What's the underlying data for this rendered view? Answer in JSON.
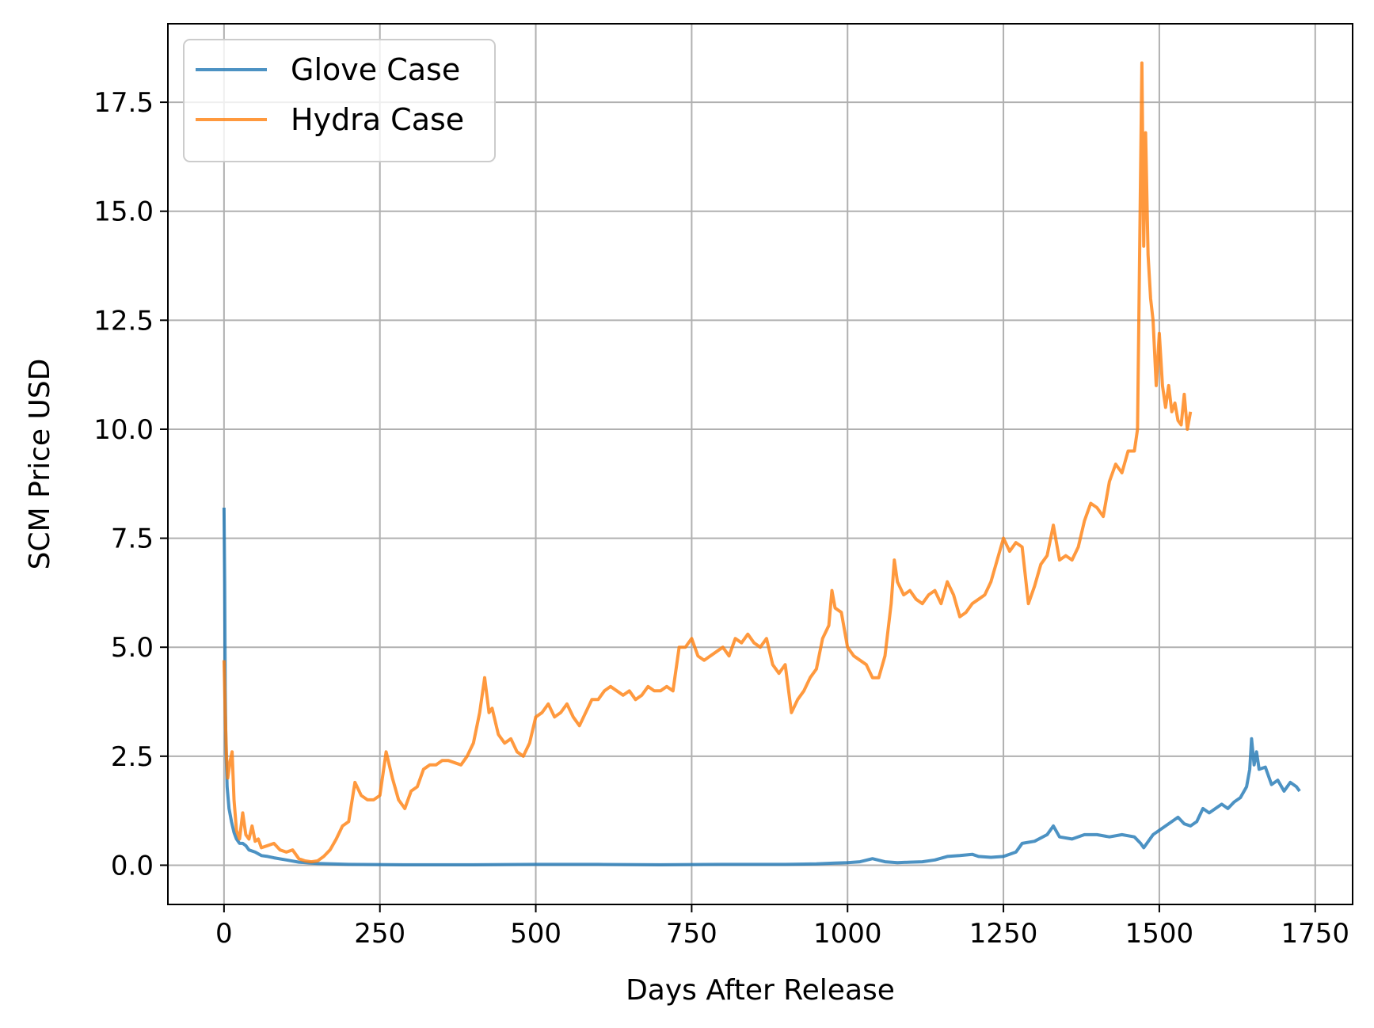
{
  "chart_data": {
    "type": "line",
    "xlabel": "Days After Release",
    "ylabel": "SCM Price USD",
    "xlim": [
      -90,
      1810
    ],
    "ylim": [
      -0.9,
      19.3
    ],
    "xticks": [
      0,
      250,
      500,
      750,
      1000,
      1250,
      1500,
      1750
    ],
    "xtick_labels": [
      "0",
      "250",
      "500",
      "750",
      "1000",
      "1250",
      "1500",
      "1750"
    ],
    "yticks": [
      0.0,
      2.5,
      5.0,
      7.5,
      10.0,
      12.5,
      15.0,
      17.5
    ],
    "ytick_labels": [
      "0.0",
      "2.5",
      "5.0",
      "7.5",
      "10.0",
      "12.5",
      "15.0",
      "17.5"
    ],
    "grid": true,
    "legend_position": "top-left",
    "series": [
      {
        "name": "Glove Case",
        "color": "#1f77b4",
        "points": [
          [
            0,
            8.2
          ],
          [
            1,
            6.5
          ],
          [
            2,
            4.0
          ],
          [
            3,
            2.8
          ],
          [
            5,
            1.8
          ],
          [
            8,
            1.3
          ],
          [
            12,
            1.0
          ],
          [
            16,
            0.75
          ],
          [
            20,
            0.6
          ],
          [
            25,
            0.5
          ],
          [
            30,
            0.5
          ],
          [
            35,
            0.45
          ],
          [
            40,
            0.35
          ],
          [
            50,
            0.3
          ],
          [
            60,
            0.22
          ],
          [
            70,
            0.2
          ],
          [
            80,
            0.17
          ],
          [
            100,
            0.12
          ],
          [
            120,
            0.07
          ],
          [
            150,
            0.04
          ],
          [
            200,
            0.02
          ],
          [
            300,
            0.01
          ],
          [
            400,
            0.01
          ],
          [
            500,
            0.02
          ],
          [
            600,
            0.02
          ],
          [
            700,
            0.01
          ],
          [
            800,
            0.02
          ],
          [
            900,
            0.02
          ],
          [
            950,
            0.03
          ],
          [
            980,
            0.05
          ],
          [
            1000,
            0.06
          ],
          [
            1020,
            0.08
          ],
          [
            1040,
            0.15
          ],
          [
            1060,
            0.08
          ],
          [
            1080,
            0.06
          ],
          [
            1100,
            0.07
          ],
          [
            1120,
            0.08
          ],
          [
            1140,
            0.12
          ],
          [
            1160,
            0.2
          ],
          [
            1180,
            0.22
          ],
          [
            1200,
            0.25
          ],
          [
            1210,
            0.2
          ],
          [
            1230,
            0.18
          ],
          [
            1250,
            0.2
          ],
          [
            1270,
            0.3
          ],
          [
            1280,
            0.5
          ],
          [
            1300,
            0.55
          ],
          [
            1320,
            0.7
          ],
          [
            1330,
            0.9
          ],
          [
            1340,
            0.65
          ],
          [
            1360,
            0.6
          ],
          [
            1380,
            0.7
          ],
          [
            1400,
            0.7
          ],
          [
            1420,
            0.65
          ],
          [
            1440,
            0.7
          ],
          [
            1460,
            0.65
          ],
          [
            1470,
            0.5
          ],
          [
            1475,
            0.4
          ],
          [
            1490,
            0.7
          ],
          [
            1510,
            0.9
          ],
          [
            1520,
            1.0
          ],
          [
            1530,
            1.1
          ],
          [
            1540,
            0.95
          ],
          [
            1550,
            0.9
          ],
          [
            1560,
            1.0
          ],
          [
            1570,
            1.3
          ],
          [
            1580,
            1.2
          ],
          [
            1590,
            1.3
          ],
          [
            1600,
            1.4
          ],
          [
            1610,
            1.3
          ],
          [
            1620,
            1.45
          ],
          [
            1630,
            1.55
          ],
          [
            1640,
            1.8
          ],
          [
            1645,
            2.2
          ],
          [
            1648,
            2.9
          ],
          [
            1652,
            2.3
          ],
          [
            1656,
            2.6
          ],
          [
            1660,
            2.2
          ],
          [
            1670,
            2.25
          ],
          [
            1680,
            1.85
          ],
          [
            1690,
            1.95
          ],
          [
            1700,
            1.7
          ],
          [
            1710,
            1.9
          ],
          [
            1720,
            1.8
          ],
          [
            1725,
            1.7
          ]
        ]
      },
      {
        "name": "Hydra Case",
        "color": "#ff7f0e",
        "points": [
          [
            0,
            4.7
          ],
          [
            2,
            3.5
          ],
          [
            4,
            2.5
          ],
          [
            6,
            2.0
          ],
          [
            10,
            2.4
          ],
          [
            13,
            2.6
          ],
          [
            16,
            1.5
          ],
          [
            20,
            0.8
          ],
          [
            25,
            0.6
          ],
          [
            30,
            1.2
          ],
          [
            35,
            0.7
          ],
          [
            40,
            0.6
          ],
          [
            45,
            0.9
          ],
          [
            50,
            0.55
          ],
          [
            55,
            0.6
          ],
          [
            60,
            0.4
          ],
          [
            70,
            0.45
          ],
          [
            80,
            0.5
          ],
          [
            90,
            0.35
          ],
          [
            100,
            0.3
          ],
          [
            110,
            0.35
          ],
          [
            120,
            0.15
          ],
          [
            130,
            0.1
          ],
          [
            140,
            0.08
          ],
          [
            150,
            0.1
          ],
          [
            160,
            0.2
          ],
          [
            170,
            0.35
          ],
          [
            180,
            0.6
          ],
          [
            190,
            0.9
          ],
          [
            200,
            1.0
          ],
          [
            210,
            1.9
          ],
          [
            220,
            1.6
          ],
          [
            230,
            1.5
          ],
          [
            240,
            1.5
          ],
          [
            250,
            1.6
          ],
          [
            260,
            2.6
          ],
          [
            270,
            2.0
          ],
          [
            280,
            1.5
          ],
          [
            290,
            1.3
          ],
          [
            300,
            1.7
          ],
          [
            310,
            1.8
          ],
          [
            320,
            2.2
          ],
          [
            330,
            2.3
          ],
          [
            340,
            2.3
          ],
          [
            350,
            2.4
          ],
          [
            360,
            2.4
          ],
          [
            380,
            2.3
          ],
          [
            390,
            2.5
          ],
          [
            400,
            2.8
          ],
          [
            410,
            3.5
          ],
          [
            418,
            4.3
          ],
          [
            425,
            3.5
          ],
          [
            430,
            3.6
          ],
          [
            440,
            3.0
          ],
          [
            450,
            2.8
          ],
          [
            460,
            2.9
          ],
          [
            470,
            2.6
          ],
          [
            480,
            2.5
          ],
          [
            490,
            2.8
          ],
          [
            500,
            3.4
          ],
          [
            510,
            3.5
          ],
          [
            520,
            3.7
          ],
          [
            530,
            3.4
          ],
          [
            540,
            3.5
          ],
          [
            550,
            3.7
          ],
          [
            560,
            3.4
          ],
          [
            570,
            3.2
          ],
          [
            580,
            3.5
          ],
          [
            590,
            3.8
          ],
          [
            600,
            3.8
          ],
          [
            610,
            4.0
          ],
          [
            620,
            4.1
          ],
          [
            630,
            4.0
          ],
          [
            640,
            3.9
          ],
          [
            650,
            4.0
          ],
          [
            660,
            3.8
          ],
          [
            670,
            3.9
          ],
          [
            680,
            4.1
          ],
          [
            690,
            4.0
          ],
          [
            700,
            4.0
          ],
          [
            710,
            4.1
          ],
          [
            720,
            4.0
          ],
          [
            730,
            5.0
          ],
          [
            740,
            5.0
          ],
          [
            750,
            5.2
          ],
          [
            760,
            4.8
          ],
          [
            770,
            4.7
          ],
          [
            780,
            4.8
          ],
          [
            790,
            4.9
          ],
          [
            800,
            5.0
          ],
          [
            810,
            4.8
          ],
          [
            820,
            5.2
          ],
          [
            830,
            5.1
          ],
          [
            840,
            5.3
          ],
          [
            850,
            5.1
          ],
          [
            860,
            5.0
          ],
          [
            870,
            5.2
          ],
          [
            880,
            4.6
          ],
          [
            890,
            4.4
          ],
          [
            900,
            4.6
          ],
          [
            910,
            3.5
          ],
          [
            920,
            3.8
          ],
          [
            930,
            4.0
          ],
          [
            940,
            4.3
          ],
          [
            950,
            4.5
          ],
          [
            960,
            5.2
          ],
          [
            970,
            5.5
          ],
          [
            975,
            6.3
          ],
          [
            980,
            5.9
          ],
          [
            990,
            5.8
          ],
          [
            1000,
            5.0
          ],
          [
            1010,
            4.8
          ],
          [
            1020,
            4.7
          ],
          [
            1030,
            4.6
          ],
          [
            1040,
            4.3
          ],
          [
            1050,
            4.3
          ],
          [
            1060,
            4.8
          ],
          [
            1070,
            6.0
          ],
          [
            1075,
            7.0
          ],
          [
            1080,
            6.5
          ],
          [
            1090,
            6.2
          ],
          [
            1100,
            6.3
          ],
          [
            1110,
            6.1
          ],
          [
            1120,
            6.0
          ],
          [
            1130,
            6.2
          ],
          [
            1140,
            6.3
          ],
          [
            1150,
            6.0
          ],
          [
            1160,
            6.5
          ],
          [
            1170,
            6.2
          ],
          [
            1180,
            5.7
          ],
          [
            1190,
            5.8
          ],
          [
            1200,
            6.0
          ],
          [
            1210,
            6.1
          ],
          [
            1220,
            6.2
          ],
          [
            1230,
            6.5
          ],
          [
            1240,
            7.0
          ],
          [
            1250,
            7.5
          ],
          [
            1260,
            7.2
          ],
          [
            1270,
            7.4
          ],
          [
            1280,
            7.3
          ],
          [
            1290,
            6.0
          ],
          [
            1300,
            6.4
          ],
          [
            1310,
            6.9
          ],
          [
            1320,
            7.1
          ],
          [
            1330,
            7.8
          ],
          [
            1340,
            7.0
          ],
          [
            1350,
            7.1
          ],
          [
            1360,
            7.0
          ],
          [
            1370,
            7.3
          ],
          [
            1380,
            7.9
          ],
          [
            1390,
            8.3
          ],
          [
            1400,
            8.2
          ],
          [
            1410,
            8.0
          ],
          [
            1420,
            8.8
          ],
          [
            1430,
            9.2
          ],
          [
            1440,
            9.0
          ],
          [
            1450,
            9.5
          ],
          [
            1460,
            9.5
          ],
          [
            1465,
            10.0
          ],
          [
            1468,
            13.5
          ],
          [
            1472,
            18.4
          ],
          [
            1475,
            14.2
          ],
          [
            1478,
            16.8
          ],
          [
            1482,
            14.0
          ],
          [
            1486,
            13.0
          ],
          [
            1490,
            12.5
          ],
          [
            1495,
            11.0
          ],
          [
            1500,
            12.2
          ],
          [
            1505,
            11.0
          ],
          [
            1510,
            10.5
          ],
          [
            1515,
            11.0
          ],
          [
            1520,
            10.4
          ],
          [
            1525,
            10.6
          ],
          [
            1530,
            10.2
          ],
          [
            1535,
            10.1
          ],
          [
            1540,
            10.8
          ],
          [
            1545,
            10.0
          ],
          [
            1550,
            10.4
          ]
        ]
      }
    ]
  }
}
